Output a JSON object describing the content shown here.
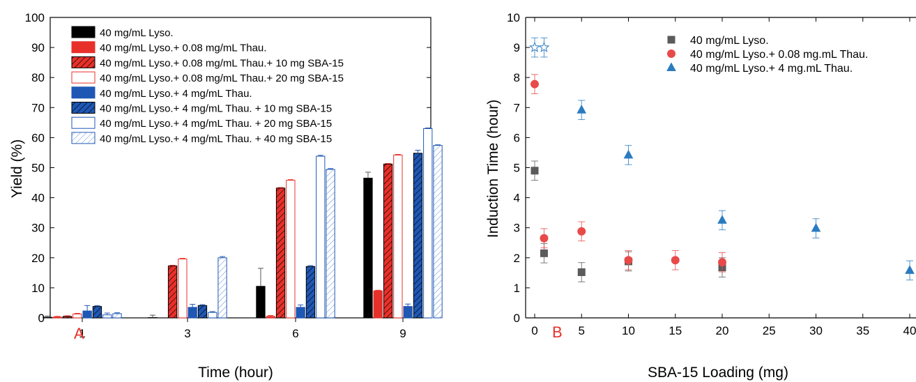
{
  "chart_data": [
    {
      "type": "bar",
      "panel_label": "A",
      "xlabel": "Time (hour)",
      "ylabel": "Yield (%)",
      "ylim": [
        0,
        100
      ],
      "yticks": [
        0,
        10,
        20,
        30,
        40,
        50,
        60,
        70,
        80,
        90,
        100
      ],
      "categories": [
        "1",
        "3",
        "6",
        "9"
      ],
      "legend_position": "top-left",
      "series": [
        {
          "name": "40 mg/mL Lyso.",
          "color": "#000000",
          "style": "solid",
          "values": [
            0.2,
            0.1,
            10.5,
            46.5
          ],
          "errors": [
            0.4,
            0.8,
            6,
            2
          ]
        },
        {
          "name": "40 mg/mL Lyso.+ 0.08 mg/mL Thau.",
          "color": "#e8302a",
          "style": "solid",
          "values": [
            0.3,
            0,
            0.5,
            9
          ],
          "errors": [
            0.2,
            0,
            0.3,
            0.2
          ]
        },
        {
          "name": "40 mg/mL Lyso.+ 0.08 mg/mL Thau.+ 10 mg SBA-15",
          "color": "#e8302a",
          "style": "hatched",
          "values": [
            0.5,
            17.3,
            43.2,
            51.2
          ],
          "errors": [
            0.2,
            0.2,
            0.2,
            0.2
          ]
        },
        {
          "name": "40 mg/mL Lyso.+ 0.08 mg/mL Thau.+ 20 mg SBA-15",
          "color": "#e8302a",
          "style": "open",
          "values": [
            1.3,
            19.6,
            45.8,
            54.2
          ],
          "errors": [
            0.2,
            0.2,
            0.2,
            0.2
          ]
        },
        {
          "name": "40 mg/mL Lyso.+ 4 mg/mL Thau.",
          "color": "#1f57b5",
          "style": "solid",
          "values": [
            2.3,
            3.5,
            3.5,
            3.8
          ],
          "errors": [
            1.8,
            1,
            0.8,
            0.8
          ]
        },
        {
          "name": "40 mg/mL Lyso.+ 4 mg/mL Thau. + 10 mg SBA-15",
          "color": "#1f57b5",
          "style": "hatched",
          "values": [
            3.8,
            4.1,
            17.1,
            54.8
          ],
          "errors": [
            0.3,
            0.3,
            0.3,
            1
          ]
        },
        {
          "name": "40 mg/mL Lyso.+ 4 mg/mL Thau. + 20 mg SBA-15",
          "color": "#1f57b5",
          "style": "open",
          "values": [
            1,
            1.8,
            53.8,
            63
          ],
          "errors": [
            0.6,
            0.3,
            0.3,
            0.2
          ]
        },
        {
          "name": "40 mg/mL Lyso.+ 4 mg/mL Thau. + 40 mg SBA-15",
          "color": "#1f57b5",
          "style": "hatched-open",
          "values": [
            1.4,
            20,
            49.4,
            57.4
          ],
          "errors": [
            0.3,
            0.4,
            0.3,
            0.2
          ]
        }
      ]
    },
    {
      "type": "scatter",
      "panel_label": "B",
      "xlabel": "SBA-15 Loading (mg)",
      "ylabel": "Induction Time (hour)",
      "xlim": [
        -1,
        40
      ],
      "ylim": [
        0,
        10
      ],
      "xticks": [
        0,
        5,
        10,
        15,
        20,
        25,
        30,
        35,
        40
      ],
      "yticks": [
        0,
        1,
        2,
        3,
        4,
        5,
        6,
        7,
        8,
        9,
        10
      ],
      "legend_position": "top-right",
      "series": [
        {
          "name": "40 mg/mL Lyso.",
          "color": "#5b5b5b",
          "marker": "square",
          "x": [
            0,
            1,
            5,
            10,
            20
          ],
          "y": [
            4.9,
            2.15,
            1.52,
            1.88,
            1.68
          ],
          "errors": [
            0.32,
            0.32,
            0.32,
            0.32,
            0.32
          ]
        },
        {
          "name": "40 mg/mL Lyso.+ 0.08 mg.mL Thau.",
          "color": "#e84a4a",
          "marker": "circle",
          "x": [
            0,
            1,
            5,
            10,
            15,
            20
          ],
          "y": [
            7.78,
            2.65,
            2.88,
            1.92,
            1.92,
            1.85
          ],
          "errors": [
            0.32,
            0.32,
            0.32,
            0.32,
            0.32,
            0.32
          ]
        },
        {
          "name": "40 mg/mL Lyso.+ 4 mg.mL Thau.",
          "color": "#2b7bc0",
          "marker": "triangle",
          "x": [
            5,
            10,
            20,
            30,
            40
          ],
          "y": [
            6.92,
            5.42,
            3.25,
            2.98,
            1.58
          ],
          "errors": [
            0.32,
            0.32,
            0.32,
            0.32,
            0.32
          ]
        }
      ],
      "open_markers": {
        "color": "#2b7bc0",
        "marker": "star",
        "x": [
          0,
          1
        ],
        "y": [
          9,
          9
        ],
        "errors": [
          0.32,
          0.32
        ]
      }
    }
  ]
}
